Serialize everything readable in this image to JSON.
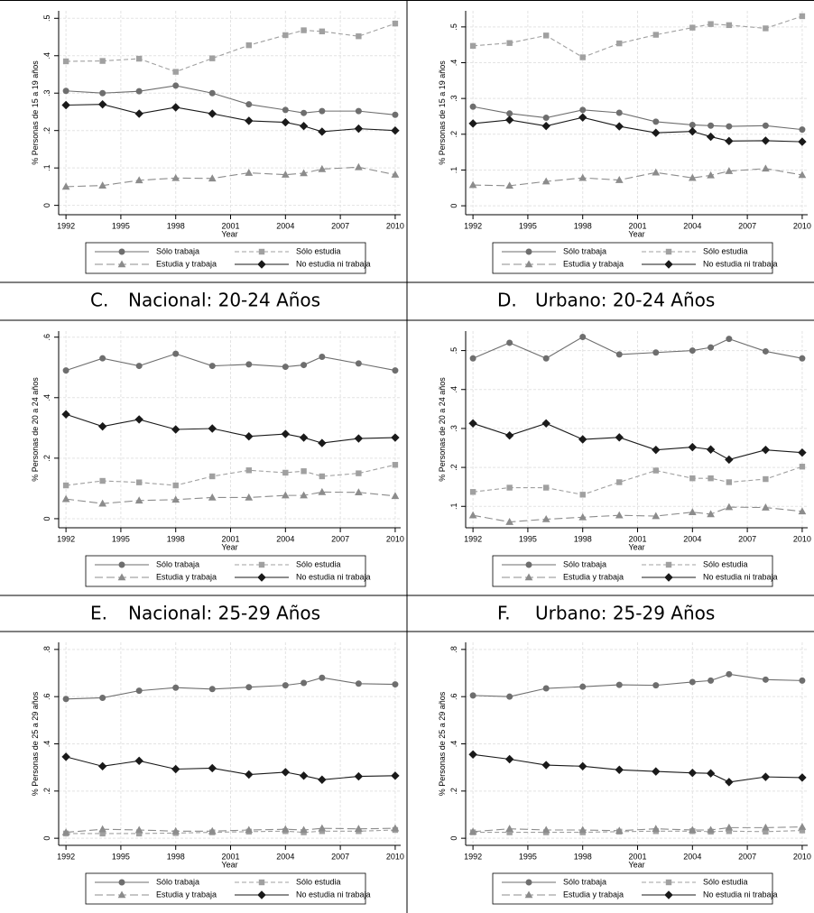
{
  "chart_data": [
    {
      "type": "line",
      "panel_label": null,
      "title": null,
      "ylabel": "% Personas de 15 a 19 años",
      "xlabel": "Year",
      "x": [
        1992,
        1994,
        1996,
        1998,
        2000,
        2002,
        2004,
        2005,
        2006,
        2008,
        2010
      ],
      "xlim": [
        1991.6,
        2010.3
      ],
      "xticks": [
        1992,
        1995,
        1998,
        2001,
        2004,
        2007,
        2010
      ],
      "ylim": [
        -0.025,
        0.52
      ],
      "yticks": [
        0,
        {
          "value": 0.1,
          "label": ".1"
        },
        {
          "value": 0.2,
          "label": ".2"
        },
        {
          "value": 0.3,
          "label": ".3"
        },
        {
          "value": 0.4,
          "label": ".4"
        },
        {
          "value": 0.5,
          "label": ".5"
        }
      ],
      "grid": true,
      "series": [
        {
          "name": "Sólo trabaja",
          "color": "#6e6e6e",
          "dash": "solid",
          "marker": "circle",
          "values": [
            0.306,
            0.3,
            0.305,
            0.32,
            0.3,
            0.27,
            0.255,
            0.247,
            0.252,
            0.252,
            0.242
          ]
        },
        {
          "name": "Sólo estudia",
          "color": "#a0a0a0",
          "dash": "dashed",
          "marker": "square",
          "values": [
            0.385,
            0.386,
            0.392,
            0.357,
            0.393,
            0.428,
            0.455,
            0.468,
            0.465,
            0.452,
            0.486
          ]
        },
        {
          "name": "Estudia y trabaja",
          "color": "#8c8c8c",
          "dash": "longdash",
          "marker": "triangle",
          "values": [
            0.05,
            0.053,
            0.067,
            0.073,
            0.072,
            0.087,
            0.082,
            0.086,
            0.097,
            0.102,
            0.082
          ]
        },
        {
          "name": "No estudia ni trabaja",
          "color": "#1a1a1a",
          "dash": "solid",
          "marker": "diamond",
          "values": [
            0.268,
            0.27,
            0.245,
            0.262,
            0.245,
            0.226,
            0.222,
            0.212,
            0.197,
            0.205,
            0.2
          ]
        }
      ]
    },
    {
      "type": "line",
      "panel_label": null,
      "title": null,
      "ylabel": "% Personas de 15 a 19 años",
      "xlabel": "Year",
      "x": [
        1992,
        1994,
        1996,
        1998,
        2000,
        2002,
        2004,
        2005,
        2006,
        2008,
        2010
      ],
      "xlim": [
        1991.6,
        2010.3
      ],
      "xticks": [
        1992,
        1995,
        1998,
        2001,
        2004,
        2007,
        2010
      ],
      "ylim": [
        -0.025,
        0.545
      ],
      "yticks": [
        0,
        {
          "value": 0.1,
          "label": ".1"
        },
        {
          "value": 0.2,
          "label": ".2"
        },
        {
          "value": 0.3,
          "label": ".3"
        },
        {
          "value": 0.4,
          "label": ".4"
        },
        {
          "value": 0.5,
          "label": ".5"
        }
      ],
      "grid": true,
      "series": [
        {
          "name": "Sólo trabaja",
          "color": "#6e6e6e",
          "dash": "solid",
          "marker": "circle",
          "values": [
            0.277,
            0.258,
            0.246,
            0.268,
            0.26,
            0.235,
            0.226,
            0.224,
            0.222,
            0.224,
            0.213
          ]
        },
        {
          "name": "Sólo estudia",
          "color": "#a0a0a0",
          "dash": "dashed",
          "marker": "square",
          "values": [
            0.447,
            0.455,
            0.476,
            0.415,
            0.454,
            0.478,
            0.498,
            0.508,
            0.505,
            0.496,
            0.53
          ]
        },
        {
          "name": "Estudia y trabaja",
          "color": "#8c8c8c",
          "dash": "longdash",
          "marker": "triangle",
          "values": [
            0.058,
            0.056,
            0.068,
            0.078,
            0.072,
            0.093,
            0.078,
            0.085,
            0.097,
            0.104,
            0.086
          ]
        },
        {
          "name": "No estudia ni trabaja",
          "color": "#1a1a1a",
          "dash": "solid",
          "marker": "diamond",
          "values": [
            0.23,
            0.24,
            0.223,
            0.247,
            0.222,
            0.204,
            0.208,
            0.193,
            0.181,
            0.182,
            0.179
          ]
        }
      ]
    },
    {
      "type": "line",
      "panel_label": "C.",
      "title": "Nacional: 20-24 Años",
      "ylabel": "% Personas de 20 a 24 años",
      "xlabel": "Year",
      "x": [
        1992,
        1994,
        1996,
        1998,
        2000,
        2002,
        2004,
        2005,
        2006,
        2008,
        2010
      ],
      "xlim": [
        1991.6,
        2010.3
      ],
      "xticks": [
        1992,
        1995,
        1998,
        2001,
        2004,
        2007,
        2010
      ],
      "ylim": [
        -0.03,
        0.62
      ],
      "yticks": [
        0,
        {
          "value": 0.2,
          "label": ".2"
        },
        {
          "value": 0.4,
          "label": ".4"
        },
        {
          "value": 0.6,
          "label": ".6"
        }
      ],
      "grid": true,
      "series": [
        {
          "name": "Sólo trabaja",
          "color": "#6e6e6e",
          "dash": "solid",
          "marker": "circle",
          "values": [
            0.49,
            0.53,
            0.505,
            0.545,
            0.505,
            0.51,
            0.502,
            0.508,
            0.535,
            0.513,
            0.49
          ]
        },
        {
          "name": "Sólo estudia",
          "color": "#a0a0a0",
          "dash": "dashed",
          "marker": "square",
          "values": [
            0.11,
            0.125,
            0.12,
            0.11,
            0.14,
            0.16,
            0.152,
            0.157,
            0.14,
            0.15,
            0.178
          ]
        },
        {
          "name": "Estudia y trabaja",
          "color": "#8c8c8c",
          "dash": "longdash",
          "marker": "triangle",
          "values": [
            0.065,
            0.05,
            0.06,
            0.063,
            0.07,
            0.07,
            0.077,
            0.077,
            0.088,
            0.087,
            0.075
          ]
        },
        {
          "name": "No estudia ni trabaja",
          "color": "#1a1a1a",
          "dash": "solid",
          "marker": "diamond",
          "values": [
            0.345,
            0.305,
            0.328,
            0.295,
            0.298,
            0.272,
            0.28,
            0.268,
            0.25,
            0.265,
            0.268
          ]
        }
      ]
    },
    {
      "type": "line",
      "panel_label": "D.",
      "title": "Urbano: 20-24 Años",
      "ylabel": "% Personas de 20 a 24 años",
      "xlabel": "Year",
      "x": [
        1992,
        1994,
        1996,
        1998,
        2000,
        2002,
        2004,
        2005,
        2006,
        2008,
        2010
      ],
      "xlim": [
        1991.6,
        2010.3
      ],
      "xticks": [
        1992,
        1995,
        1998,
        2001,
        2004,
        2007,
        2010
      ],
      "ylim": [
        0.045,
        0.55
      ],
      "yticks": [
        {
          "value": 0.1,
          "label": ".1"
        },
        {
          "value": 0.2,
          "label": ".2"
        },
        {
          "value": 0.3,
          "label": ".3"
        },
        {
          "value": 0.4,
          "label": ".4"
        },
        {
          "value": 0.5,
          "label": ".5"
        }
      ],
      "grid": true,
      "series": [
        {
          "name": "Sólo trabaja",
          "color": "#6e6e6e",
          "dash": "solid",
          "marker": "circle",
          "values": [
            0.48,
            0.52,
            0.48,
            0.535,
            0.49,
            0.495,
            0.5,
            0.508,
            0.53,
            0.498,
            0.48
          ]
        },
        {
          "name": "Sólo estudia",
          "color": "#a0a0a0",
          "dash": "dashed",
          "marker": "square",
          "values": [
            0.137,
            0.148,
            0.148,
            0.13,
            0.162,
            0.192,
            0.172,
            0.172,
            0.162,
            0.17,
            0.202
          ]
        },
        {
          "name": "Estudia y trabaja",
          "color": "#8c8c8c",
          "dash": "longdash",
          "marker": "triangle",
          "values": [
            0.077,
            0.06,
            0.067,
            0.072,
            0.077,
            0.075,
            0.085,
            0.08,
            0.098,
            0.097,
            0.087
          ]
        },
        {
          "name": "No estudia ni trabaja",
          "color": "#1a1a1a",
          "dash": "solid",
          "marker": "diamond",
          "values": [
            0.313,
            0.282,
            0.313,
            0.272,
            0.277,
            0.245,
            0.252,
            0.246,
            0.22,
            0.245,
            0.238
          ]
        }
      ]
    },
    {
      "type": "line",
      "panel_label": "E.",
      "title": "Nacional: 25-29 Años",
      "ylabel": "% Personas de 25 a 29 años",
      "xlabel": "Year",
      "x": [
        1992,
        1994,
        1996,
        1998,
        2000,
        2002,
        2004,
        2005,
        2006,
        2008,
        2010
      ],
      "xlim": [
        1991.6,
        2010.3
      ],
      "xticks": [
        1992,
        1995,
        1998,
        2001,
        2004,
        2007,
        2010
      ],
      "ylim": [
        -0.03,
        0.83
      ],
      "yticks": [
        0,
        {
          "value": 0.2,
          "label": ".2"
        },
        {
          "value": 0.4,
          "label": ".4"
        },
        {
          "value": 0.6,
          "label": ".6"
        },
        {
          "value": 0.8,
          "label": ".8"
        }
      ],
      "grid": true,
      "series": [
        {
          "name": "Sólo trabaja",
          "color": "#6e6e6e",
          "dash": "solid",
          "marker": "circle",
          "values": [
            0.59,
            0.595,
            0.625,
            0.638,
            0.632,
            0.64,
            0.648,
            0.658,
            0.68,
            0.655,
            0.652
          ]
        },
        {
          "name": "Sólo estudia",
          "color": "#a0a0a0",
          "dash": "dashed",
          "marker": "square",
          "values": [
            0.02,
            0.02,
            0.02,
            0.022,
            0.025,
            0.028,
            0.03,
            0.025,
            0.03,
            0.03,
            0.035
          ]
        },
        {
          "name": "Estudia y trabaja",
          "color": "#8c8c8c",
          "dash": "longdash",
          "marker": "triangle",
          "values": [
            0.025,
            0.038,
            0.035,
            0.03,
            0.03,
            0.035,
            0.038,
            0.035,
            0.042,
            0.04,
            0.042
          ]
        },
        {
          "name": "No estudia ni trabaja",
          "color": "#1a1a1a",
          "dash": "solid",
          "marker": "diamond",
          "values": [
            0.345,
            0.305,
            0.328,
            0.293,
            0.297,
            0.27,
            0.28,
            0.265,
            0.248,
            0.262,
            0.265
          ]
        }
      ]
    },
    {
      "type": "line",
      "panel_label": "F.",
      "title": "Urbano: 25-29 Años",
      "ylabel": "% Personas de 25 a 29 años",
      "xlabel": "Year",
      "x": [
        1992,
        1994,
        1996,
        1998,
        2000,
        2002,
        2004,
        2005,
        2006,
        2008,
        2010
      ],
      "xlim": [
        1991.6,
        2010.3
      ],
      "xticks": [
        1992,
        1995,
        1998,
        2001,
        2004,
        2007,
        2010
      ],
      "ylim": [
        -0.03,
        0.83
      ],
      "yticks": [
        0,
        {
          "value": 0.2,
          "label": ".2"
        },
        {
          "value": 0.4,
          "label": ".4"
        },
        {
          "value": 0.6,
          "label": ".6"
        },
        {
          "value": 0.8,
          "label": ".8"
        }
      ],
      "grid": true,
      "series": [
        {
          "name": "Sólo trabaja",
          "color": "#6e6e6e",
          "dash": "solid",
          "marker": "circle",
          "values": [
            0.605,
            0.6,
            0.635,
            0.642,
            0.65,
            0.648,
            0.662,
            0.668,
            0.695,
            0.672,
            0.668
          ]
        },
        {
          "name": "Sólo estudia",
          "color": "#a0a0a0",
          "dash": "dashed",
          "marker": "square",
          "values": [
            0.025,
            0.025,
            0.025,
            0.025,
            0.028,
            0.03,
            0.03,
            0.028,
            0.03,
            0.028,
            0.033
          ]
        },
        {
          "name": "Estudia y trabaja",
          "color": "#8c8c8c",
          "dash": "longdash",
          "marker": "triangle",
          "values": [
            0.028,
            0.04,
            0.035,
            0.035,
            0.032,
            0.04,
            0.035,
            0.035,
            0.045,
            0.045,
            0.048
          ]
        },
        {
          "name": "No estudia ni trabaja",
          "color": "#1a1a1a",
          "dash": "solid",
          "marker": "diamond",
          "values": [
            0.355,
            0.335,
            0.31,
            0.305,
            0.29,
            0.283,
            0.277,
            0.275,
            0.238,
            0.26,
            0.257
          ]
        }
      ]
    }
  ]
}
